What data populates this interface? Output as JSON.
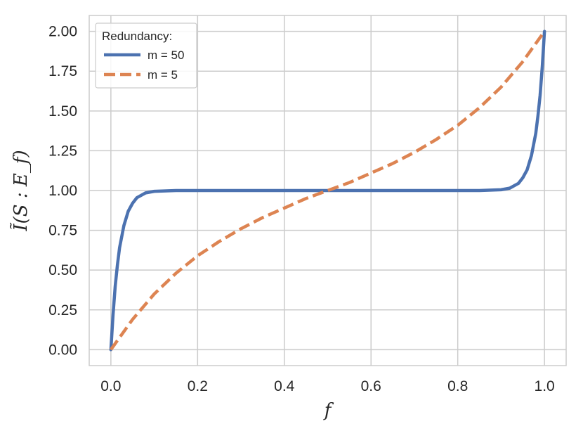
{
  "chart_data": {
    "type": "line",
    "title": "",
    "xlabel": "f",
    "ylabel": "Ĩ(S : E_f)",
    "xlim": [
      -0.05,
      1.05
    ],
    "ylim": [
      -0.1,
      2.1
    ],
    "xticks": [
      0.0,
      0.2,
      0.4,
      0.6,
      0.8,
      1.0
    ],
    "xtick_labels": [
      "0.0",
      "0.2",
      "0.4",
      "0.6",
      "0.8",
      "1.0"
    ],
    "yticks": [
      0.0,
      0.25,
      0.5,
      0.75,
      1.0,
      1.25,
      1.5,
      1.75,
      2.0
    ],
    "ytick_labels": [
      "0.00",
      "0.25",
      "0.50",
      "0.75",
      "1.00",
      "1.25",
      "1.50",
      "1.75",
      "2.00"
    ],
    "grid": true,
    "legend": {
      "title": "Redundancy:",
      "placement": "top-left"
    },
    "series": [
      {
        "name": "m = 50",
        "color": "#4c72b0",
        "style": "solid",
        "x": [
          0.0,
          0.005,
          0.01,
          0.015,
          0.02,
          0.03,
          0.04,
          0.05,
          0.06,
          0.08,
          0.1,
          0.15,
          0.2,
          0.3,
          0.4,
          0.5,
          0.6,
          0.7,
          0.8,
          0.85,
          0.9,
          0.92,
          0.94,
          0.95,
          0.96,
          0.97,
          0.98,
          0.985,
          0.99,
          0.995,
          1.0
        ],
        "y": [
          0.0,
          0.22,
          0.4,
          0.53,
          0.64,
          0.78,
          0.87,
          0.92,
          0.955,
          0.985,
          0.995,
          1.0,
          1.0,
          1.0,
          1.0,
          1.0,
          1.0,
          1.0,
          1.0,
          1.0,
          1.005,
          1.015,
          1.045,
          1.08,
          1.13,
          1.22,
          1.36,
          1.47,
          1.6,
          1.78,
          2.0
        ]
      },
      {
        "name": "m = 5",
        "color": "#dd8452",
        "style": "dashed",
        "x": [
          0.0,
          0.05,
          0.1,
          0.15,
          0.2,
          0.25,
          0.3,
          0.35,
          0.4,
          0.45,
          0.5,
          0.55,
          0.6,
          0.65,
          0.7,
          0.75,
          0.8,
          0.85,
          0.9,
          0.95,
          1.0
        ],
        "y": [
          0.0,
          0.19,
          0.35,
          0.48,
          0.59,
          0.68,
          0.76,
          0.83,
          0.89,
          0.95,
          1.0,
          1.05,
          1.11,
          1.17,
          1.24,
          1.32,
          1.41,
          1.52,
          1.65,
          1.81,
          2.0
        ]
      }
    ]
  }
}
